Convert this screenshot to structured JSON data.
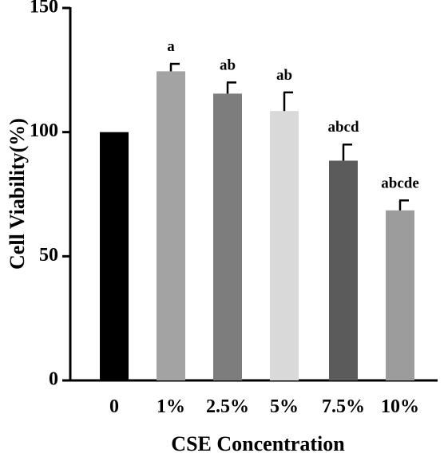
{
  "chart_data": {
    "type": "bar",
    "title": "",
    "xlabel": "CSE Concentration",
    "ylabel": "Cell Viability(%)",
    "ylim": [
      0,
      150
    ],
    "yticks": [
      "0",
      "50",
      "100",
      "150"
    ],
    "categories": [
      "0",
      "1%",
      "2.5%",
      "5%",
      "7.5%",
      "10%"
    ],
    "values": [
      100,
      124.5,
      115.5,
      108.5,
      88.5,
      68.5
    ],
    "errors": [
      0,
      3,
      4.5,
      7.5,
      6.5,
      4
    ],
    "significance": [
      "",
      "a",
      "ab",
      "ab",
      "abcd",
      "abcde"
    ],
    "colors": [
      "#000000",
      "#a3a3a3",
      "#7d7d7d",
      "#d9d9d9",
      "#5b5b5b",
      "#9c9c9c"
    ],
    "grid": false,
    "legend": "none"
  }
}
